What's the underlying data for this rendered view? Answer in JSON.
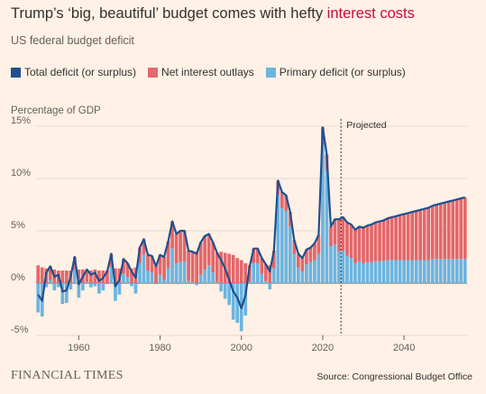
{
  "header": {
    "title_main": "Trump’s ‘big, beautiful’ budget comes with hefty ",
    "title_highlight": "interest costs",
    "subtitle": "US federal budget deficit",
    "highlight_color": "#cc0a3d"
  },
  "footer": {
    "brand": "FINANCIAL TIMES",
    "source": "Source: Congressional Budget Office"
  },
  "chart_data": {
    "type": "bar",
    "ylabel": "Percentage of GDP",
    "ylim": [
      -5,
      15
    ],
    "yticks": [
      -5,
      0,
      5,
      10,
      15
    ],
    "ytick_labels": [
      "-5%",
      "0%",
      "5%",
      "10%",
      "15%"
    ],
    "xlim": [
      1949.5,
      2055.5
    ],
    "xticks": [
      1960,
      1980,
      2000,
      2020,
      2040
    ],
    "xtick_labels": [
      "1960",
      "1980",
      "2000",
      "2020",
      "2040"
    ],
    "grid": true,
    "annotation": {
      "x": 2024.5,
      "label": "Projected"
    },
    "series": [
      {
        "name": "Total deficit (or surplus)",
        "role": "line",
        "color": "#1f4f8f"
      },
      {
        "name": "Net interest outlays",
        "role": "bar",
        "color": "#e3676b"
      },
      {
        "name": "Primary deficit (or surplus)",
        "role": "bar",
        "color": "#6bb5e0"
      }
    ],
    "years": [
      1950,
      1951,
      1952,
      1953,
      1954,
      1955,
      1956,
      1957,
      1958,
      1959,
      1960,
      1961,
      1962,
      1963,
      1964,
      1965,
      1966,
      1967,
      1968,
      1969,
      1970,
      1971,
      1972,
      1973,
      1974,
      1975,
      1976,
      1977,
      1978,
      1979,
      1980,
      1981,
      1982,
      1983,
      1984,
      1985,
      1986,
      1987,
      1988,
      1989,
      1990,
      1991,
      1992,
      1993,
      1994,
      1995,
      1996,
      1997,
      1998,
      1999,
      2000,
      2001,
      2002,
      2003,
      2004,
      2005,
      2006,
      2007,
      2008,
      2009,
      2010,
      2011,
      2012,
      2013,
      2014,
      2015,
      2016,
      2017,
      2018,
      2019,
      2020,
      2021,
      2022,
      2023,
      2024,
      2025,
      2026,
      2027,
      2028,
      2029,
      2030,
      2031,
      2032,
      2033,
      2034,
      2035,
      2036,
      2037,
      2038,
      2039,
      2040,
      2041,
      2042,
      2043,
      2044,
      2045,
      2046,
      2047,
      2048,
      2049,
      2050,
      2051,
      2052,
      2053,
      2054,
      2055
    ],
    "net_interest": [
      1.7,
      1.5,
      1.4,
      1.3,
      1.3,
      1.2,
      1.2,
      1.2,
      1.2,
      1.2,
      1.3,
      1.3,
      1.2,
      1.2,
      1.3,
      1.2,
      1.2,
      1.2,
      1.3,
      1.4,
      1.4,
      1.4,
      1.3,
      1.4,
      1.5,
      1.5,
      1.5,
      1.5,
      1.6,
      1.7,
      1.9,
      2.2,
      2.6,
      2.6,
      2.8,
      3.0,
      2.9,
      2.9,
      2.9,
      3.0,
      3.1,
      3.2,
      3.0,
      2.9,
      2.8,
      3.0,
      2.9,
      2.8,
      2.7,
      2.4,
      2.2,
      1.9,
      1.6,
      1.4,
      1.4,
      1.5,
      1.6,
      1.7,
      1.7,
      1.3,
      1.5,
      1.5,
      1.4,
      1.3,
      1.3,
      1.3,
      1.4,
      1.4,
      1.6,
      1.8,
      1.6,
      1.6,
      1.9,
      2.4,
      3.1,
      3.2,
      3.2,
      3.2,
      3.2,
      3.3,
      3.4,
      3.5,
      3.6,
      3.7,
      3.8,
      3.9,
      4.0,
      4.1,
      4.2,
      4.3,
      4.4,
      4.5,
      4.6,
      4.7,
      4.8,
      4.9,
      5.0,
      5.1,
      5.2,
      5.3,
      5.4,
      5.5,
      5.6,
      5.7,
      5.8,
      5.9
    ],
    "primary": [
      -2.8,
      -3.2,
      -0.4,
      0.3,
      -0.7,
      -0.4,
      -2.0,
      -1.9,
      -0.6,
      1.3,
      -1.4,
      -0.7,
      0.1,
      -0.4,
      -0.3,
      -1.0,
      -0.7,
      -0.1,
      1.5,
      -1.7,
      -1.1,
      0.9,
      0.6,
      -0.3,
      -1.0,
      1.9,
      2.7,
      1.2,
      1.0,
      -0.1,
      0.8,
      0.3,
      1.4,
      3.3,
      1.9,
      2.0,
      2.1,
      0.2,
      0.1,
      -0.2,
      0.8,
      1.3,
      1.7,
      1.0,
      0.1,
      -0.8,
      -1.5,
      -2.1,
      -3.5,
      -3.8,
      -4.6,
      -3.1,
      0.1,
      1.9,
      1.9,
      0.9,
      0.2,
      -0.6,
      1.4,
      8.5,
      7.2,
      6.9,
      5.4,
      2.8,
      1.5,
      1.1,
      1.8,
      2.0,
      2.2,
      2.8,
      13.3,
      10.7,
      3.5,
      3.7,
      3.0,
      3.1,
      2.6,
      2.4,
      1.9,
      2.1,
      1.9,
      2.0,
      2.0,
      2.1,
      2.1,
      2.1,
      2.2,
      2.2,
      2.2,
      2.2,
      2.2,
      2.2,
      2.2,
      2.2,
      2.2,
      2.2,
      2.2,
      2.3,
      2.3,
      2.3,
      2.3,
      2.3,
      2.3,
      2.3,
      2.3,
      2.3
    ],
    "total": [
      -1.1,
      -1.7,
      1.0,
      1.6,
      0.6,
      0.8,
      -0.8,
      -0.7,
      0.6,
      2.5,
      -0.1,
      0.6,
      1.3,
      0.8,
      1.0,
      0.2,
      0.5,
      1.1,
      2.8,
      -0.3,
      0.3,
      2.3,
      1.9,
      1.1,
      0.5,
      3.4,
      4.2,
      2.7,
      2.6,
      1.6,
      2.7,
      2.5,
      4.0,
      5.9,
      4.7,
      5.0,
      5.0,
      3.1,
      3.0,
      2.8,
      3.9,
      4.5,
      4.7,
      3.9,
      2.9,
      2.2,
      1.4,
      0.3,
      -0.8,
      -1.4,
      -2.4,
      -1.2,
      1.5,
      3.3,
      3.3,
      2.4,
      1.8,
      1.1,
      3.1,
      9.8,
      8.7,
      8.4,
      6.8,
      4.1,
      2.8,
      2.4,
      3.2,
      3.4,
      3.8,
      4.6,
      14.9,
      12.3,
      5.4,
      6.1,
      6.1,
      6.3,
      5.8,
      5.6,
      5.1,
      5.4,
      5.3,
      5.5,
      5.6,
      5.8,
      5.9,
      6.0,
      6.2,
      6.3,
      6.4,
      6.5,
      6.6,
      6.7,
      6.8,
      6.9,
      7.0,
      7.1,
      7.2,
      7.4,
      7.5,
      7.6,
      7.7,
      7.8,
      7.9,
      8.0,
      8.1,
      8.2
    ]
  }
}
